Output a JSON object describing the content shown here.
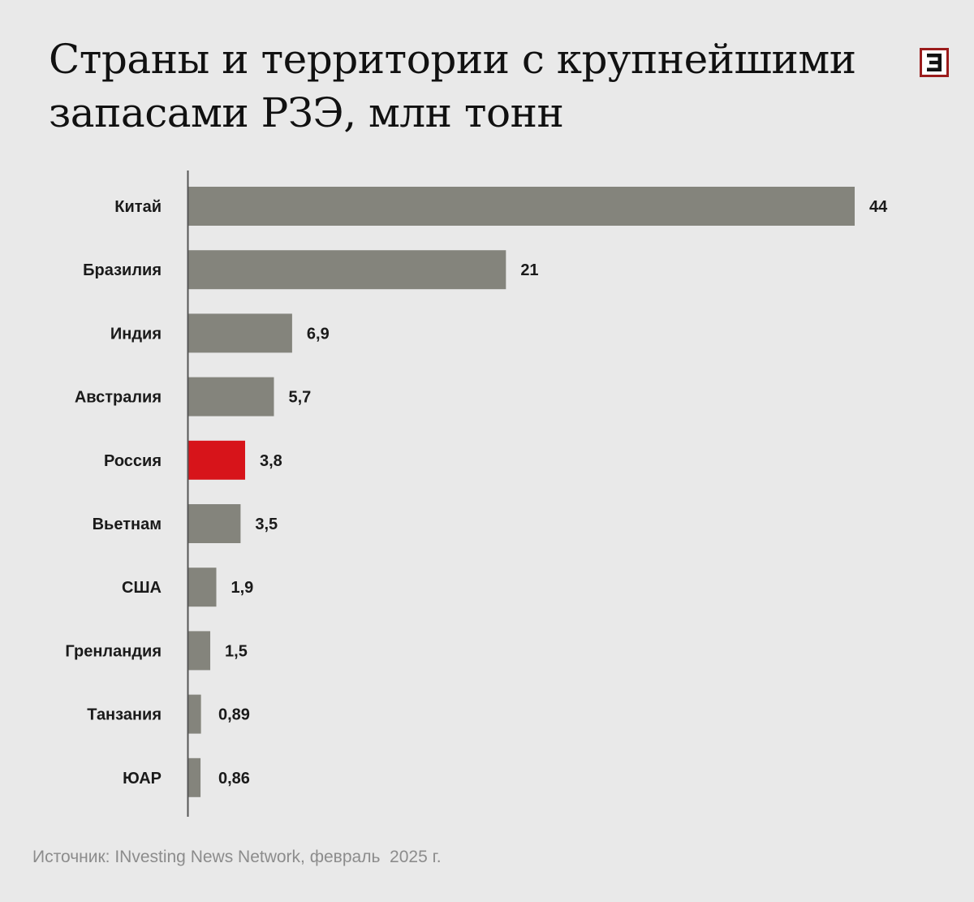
{
  "colors": {
    "background": "#e9e9e9",
    "bar": "#84847c",
    "highlight": "#d7141a",
    "brand": "#9b1c1c",
    "axis": "#555555"
  },
  "logo": {
    "icon": "e-logo-icon",
    "letter": "Е"
  },
  "chart_data": {
    "type": "bar",
    "orientation": "horizontal",
    "title": "Страны и территории с крупнейшими запасами РЗЭ, млн тонн",
    "xlabel": "",
    "ylabel": "",
    "xlim": [
      0,
      44
    ],
    "grid": false,
    "legend": "none",
    "highlight_category": "Россия",
    "categories": [
      "Китай",
      "Бразилия",
      "Индия",
      "Австралия",
      "Россия",
      "Вьетнам",
      "США",
      "Гренландия",
      "Танзания",
      "ЮАР"
    ],
    "values": [
      44,
      21,
      6.9,
      5.7,
      3.8,
      3.5,
      1.9,
      1.5,
      0.89,
      0.86
    ],
    "value_labels": [
      "44",
      "21",
      "6,9",
      "5,7",
      "3,8",
      "3,5",
      "1,9",
      "1,5",
      "0,89",
      "0,86"
    ]
  },
  "source": "Источник: INvesting News Network, февраль  2025 г."
}
